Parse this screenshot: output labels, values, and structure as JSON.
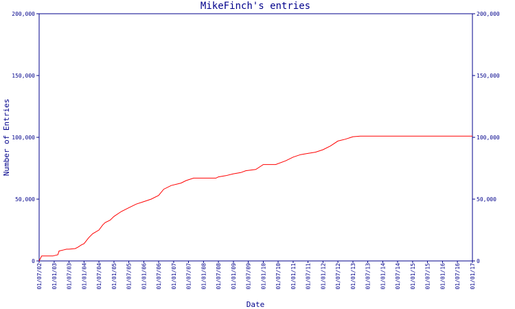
{
  "chart_data": {
    "type": "line",
    "title": "MikeFinch's entries",
    "xlabel": "Date",
    "ylabel": "Number of Entries",
    "ylim": [
      0,
      200000
    ],
    "grid": false,
    "y_ticks": [
      {
        "value": 0,
        "label": "0"
      },
      {
        "value": 50000,
        "label": "50,000"
      },
      {
        "value": 100000,
        "label": "100,000"
      },
      {
        "value": 150000,
        "label": "150,000"
      },
      {
        "value": 200000,
        "label": "200,000"
      }
    ],
    "x_ticks": [
      "01/07/02",
      "01/01/03",
      "01/07/03",
      "01/01/04",
      "01/07/04",
      "01/01/05",
      "01/07/05",
      "01/01/06",
      "01/07/06",
      "01/01/07",
      "01/07/07",
      "01/01/08",
      "01/07/08",
      "01/01/09",
      "01/07/09",
      "01/01/10",
      "01/07/10",
      "01/01/11",
      "01/07/11",
      "01/01/12",
      "01/07/12",
      "01/01/13",
      "01/07/13",
      "01/01/14",
      "01/07/14",
      "01/01/15",
      "01/07/15",
      "01/01/16",
      "01/07/16",
      "01/01/17"
    ],
    "series": [
      {
        "color": "#ff0000",
        "x": [
          "2002-07-01",
          "2002-08-01",
          "2002-09-15",
          "2002-12-15",
          "2003-02-15",
          "2003-03-01",
          "2003-05-01",
          "2003-06-01",
          "2003-07-01",
          "2003-09-15",
          "2003-10-15",
          "2003-12-01",
          "2004-01-01",
          "2004-03-01",
          "2004-04-15",
          "2004-07-01",
          "2004-08-15",
          "2004-09-15",
          "2004-11-15",
          "2005-01-01",
          "2005-04-01",
          "2005-07-01",
          "2005-10-01",
          "2006-01-01",
          "2006-04-01",
          "2006-07-01",
          "2006-09-01",
          "2006-12-01",
          "2007-04-01",
          "2007-06-01",
          "2007-09-01",
          "2007-10-15",
          "2007-12-01",
          "2008-04-01",
          "2008-06-01",
          "2008-07-01",
          "2008-10-01",
          "2009-01-01",
          "2009-04-01",
          "2009-06-01",
          "2009-10-01",
          "2010-01-01",
          "2010-04-01",
          "2010-06-01",
          "2010-10-01",
          "2011-01-01",
          "2011-04-01",
          "2011-07-01",
          "2011-10-01",
          "2012-01-01",
          "2012-04-01",
          "2012-07-01",
          "2012-10-01",
          "2013-01-01",
          "2013-04-01",
          "2013-07-01",
          "2013-09-01",
          "2014-01-01",
          "2015-01-01",
          "2016-01-01",
          "2016-07-01",
          "2017-01-01"
        ],
        "y": [
          0,
          4000,
          4000,
          4000,
          5000,
          8000,
          9000,
          9500,
          9500,
          10000,
          11000,
          13000,
          14000,
          19000,
          22000,
          25000,
          29000,
          31000,
          33000,
          36000,
          40000,
          43000,
          46000,
          48000,
          50000,
          53000,
          58000,
          61000,
          63000,
          65000,
          67000,
          67000,
          67000,
          67000,
          67000,
          68000,
          69000,
          70500,
          71500,
          73000,
          74000,
          78000,
          78000,
          78000,
          81000,
          84000,
          86000,
          87000,
          88000,
          90000,
          93000,
          97000,
          98500,
          100500,
          101000,
          101000,
          101000,
          101000,
          101000,
          101000,
          101000,
          101000
        ]
      }
    ]
  }
}
